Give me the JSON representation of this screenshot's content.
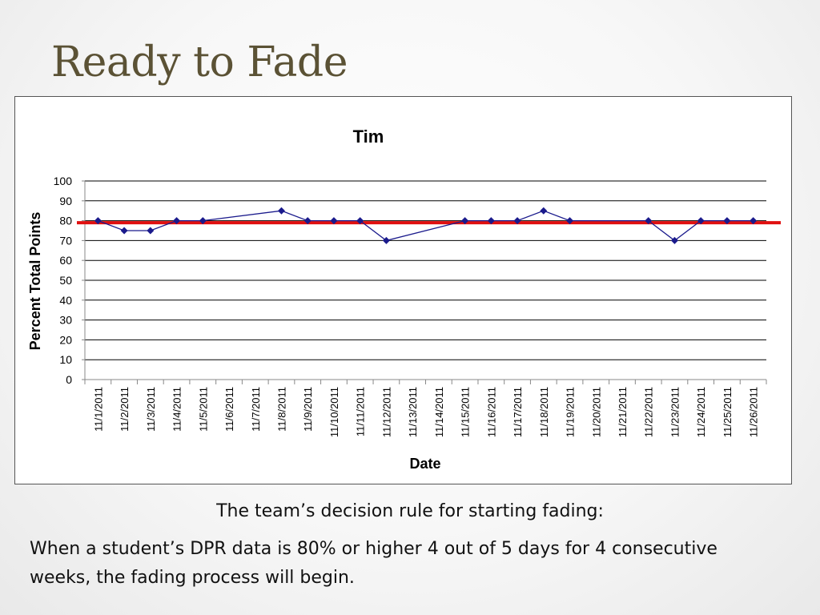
{
  "slide": {
    "title": "Ready to Fade",
    "caption": "The team’s decision rule for starting fading:",
    "rule": "When a student’s DPR data is 80% or higher 4 out of 5 days for 4 consecutive weeks, the fading process will begin."
  },
  "colors": {
    "series": "#1a1a8c",
    "goal_line": "#e01010",
    "title_text": "#5b5235"
  },
  "chart_data": {
    "type": "line",
    "title": "Tim",
    "xlabel": "Date",
    "ylabel": "Percent Total Points",
    "ylim": [
      0,
      100
    ],
    "yticks": [
      0,
      10,
      20,
      30,
      40,
      50,
      60,
      70,
      80,
      90,
      100
    ],
    "grid": true,
    "categories": [
      "11/1/2011",
      "11/2/2011",
      "11/3/2011",
      "11/4/2011",
      "11/5/2011",
      "11/6/2011",
      "11/7/2011",
      "11/8/2011",
      "11/9/2011",
      "11/10/2011",
      "11/11/2011",
      "11/12/2011",
      "11/13/2011",
      "11/14/2011",
      "11/15/2011",
      "11/16/2011",
      "11/17/2011",
      "11/18/2011",
      "11/19/2011",
      "11/20/2011",
      "11/21/2011",
      "11/22/2011",
      "11/23/2011",
      "11/24/2011",
      "11/25/2011",
      "11/26/2011"
    ],
    "series": [
      {
        "values": [
          80,
          75,
          75,
          80,
          80,
          null,
          null,
          85,
          80,
          80,
          80,
          70,
          null,
          null,
          80,
          80,
          80,
          85,
          80,
          null,
          null,
          80,
          70,
          80,
          80,
          80
        ]
      }
    ],
    "reference_line": {
      "y": 79
    }
  }
}
